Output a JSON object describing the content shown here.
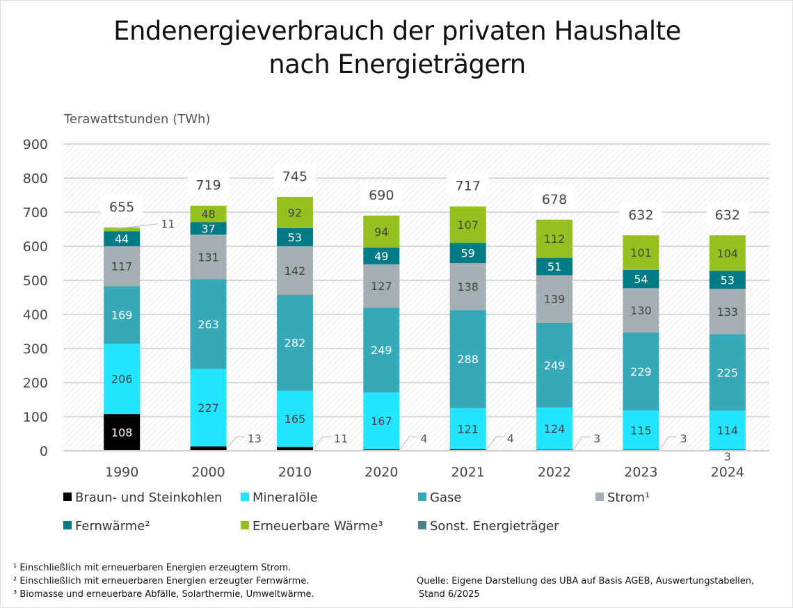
{
  "chart_data": {
    "type": "bar",
    "stacked": true,
    "title": "Endenergieverbrauch der privaten Haushalte nach Energieträgern",
    "title_lines": [
      "Endenergieverbrauch der privaten Haushalte",
      "nach Energieträgern"
    ],
    "ylabel": "Terawattstunden (TWh)",
    "ylim": [
      0,
      900
    ],
    "yticks": [
      0,
      100,
      200,
      300,
      400,
      500,
      600,
      700,
      800,
      900
    ],
    "grid": true,
    "legend_position": "bottom",
    "categories": [
      "1990",
      "2000",
      "2010",
      "2020",
      "2021",
      "2022",
      "2023",
      "2024"
    ],
    "totals": [
      655,
      719,
      745,
      690,
      717,
      678,
      632,
      632
    ],
    "series": [
      {
        "name": "Braun- und Steinkohlen",
        "color": "#000000",
        "values": [
          108,
          13,
          11,
          4,
          4,
          3,
          3,
          3
        ]
      },
      {
        "name": "Mineralöle",
        "color": "#22e5ff",
        "values": [
          206,
          227,
          165,
          167,
          121,
          124,
          115,
          114
        ]
      },
      {
        "name": "Gase",
        "color": "#35a9b8",
        "values": [
          169,
          263,
          282,
          249,
          288,
          249,
          229,
          225
        ]
      },
      {
        "name": "Strom¹",
        "color": "#a3afb3",
        "values": [
          117,
          131,
          142,
          127,
          138,
          139,
          130,
          133
        ]
      },
      {
        "name": "Fernwärme²",
        "color": "#007a85",
        "values": [
          44,
          37,
          53,
          49,
          59,
          51,
          54,
          53
        ]
      },
      {
        "name": "Erneuerbare Wärme³",
        "color": "#95c11f",
        "values": [
          11,
          48,
          92,
          94,
          107,
          112,
          101,
          104
        ]
      },
      {
        "name": "Sonst. Energieträger",
        "color": "#4d7f8f",
        "values": [
          0,
          0,
          0,
          0,
          0,
          0,
          0,
          0
        ]
      }
    ]
  },
  "footnotes": [
    "¹ Einschließlich mit erneuerbaren Energien erzeugtem Strom.",
    "² Einschließlich mit erneuerbaren Energien erzeugter Fernwärme.",
    "³ Biomasse und erneuerbare Abfälle, Solarthermie, Umweltwärme."
  ],
  "source": [
    "Quelle: Eigene Darstellung des UBA auf Basis AGEB, Auswertungstabellen,",
    "Stand 6/2025"
  ]
}
